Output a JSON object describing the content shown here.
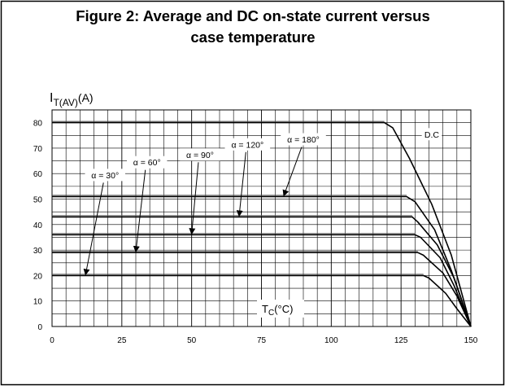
{
  "figure": {
    "title_line1": "Figure 2: Average and DC on-state current versus",
    "title_line2": "case temperature"
  },
  "chart_data": {
    "type": "line",
    "title": "Figure 2: Average and DC on-state current versus case temperature",
    "ylabel": {
      "main": "I",
      "sub": "T(AV)",
      "unit": "(A)"
    },
    "xlabel": {
      "main": "T",
      "sub": "C",
      "unit": "(°C)"
    },
    "xlim": [
      0,
      150
    ],
    "ylim": [
      0,
      85
    ],
    "xticks": [
      0,
      25,
      50,
      75,
      100,
      125,
      150
    ],
    "yticks": [
      0,
      10,
      20,
      30,
      40,
      50,
      60,
      70,
      80
    ],
    "grid": true,
    "series": [
      {
        "name": "D.C",
        "points": [
          [
            0,
            80
          ],
          [
            119,
            80
          ],
          [
            122,
            78
          ],
          [
            128,
            66
          ],
          [
            136,
            48
          ],
          [
            143,
            28
          ],
          [
            150,
            0
          ]
        ]
      },
      {
        "name": "α = 180°",
        "points": [
          [
            0,
            51
          ],
          [
            127,
            51
          ],
          [
            130,
            49
          ],
          [
            137,
            38
          ],
          [
            143,
            22
          ],
          [
            150,
            0
          ]
        ]
      },
      {
        "name": "α = 120°",
        "points": [
          [
            0,
            43
          ],
          [
            129,
            43
          ],
          [
            131,
            41
          ],
          [
            138,
            32
          ],
          [
            144,
            19
          ],
          [
            150,
            0
          ]
        ]
      },
      {
        "name": "α = 90°",
        "points": [
          [
            0,
            36
          ],
          [
            130,
            36
          ],
          [
            132,
            35
          ],
          [
            139,
            27
          ],
          [
            144,
            16
          ],
          [
            150,
            0
          ]
        ]
      },
      {
        "name": "α = 60°",
        "points": [
          [
            0,
            29
          ],
          [
            131,
            29
          ],
          [
            133,
            28
          ],
          [
            140,
            21
          ],
          [
            145,
            12
          ],
          [
            150,
            0
          ]
        ]
      },
      {
        "name": "α = 30°",
        "points": [
          [
            0,
            20
          ],
          [
            133,
            20
          ],
          [
            135,
            19
          ],
          [
            141,
            13
          ],
          [
            145,
            7
          ],
          [
            150,
            0
          ]
        ]
      }
    ],
    "annotations": [
      {
        "text": "D.C",
        "at": [
          136,
          75
        ]
      },
      {
        "text": "α = 180°",
        "at": [
          90,
          73
        ],
        "arrow_to": [
          83,
          51
        ]
      },
      {
        "text": "α = 120°",
        "at": [
          70,
          71
        ],
        "arrow_to": [
          67,
          43
        ]
      },
      {
        "text": "α = 90°",
        "at": [
          53,
          67
        ],
        "arrow_to": [
          50,
          36
        ]
      },
      {
        "text": "α = 60°",
        "at": [
          34,
          64
        ],
        "arrow_to": [
          30,
          29
        ]
      },
      {
        "text": "α = 30°",
        "at": [
          19,
          59
        ],
        "arrow_to": [
          12,
          20
        ]
      }
    ]
  }
}
